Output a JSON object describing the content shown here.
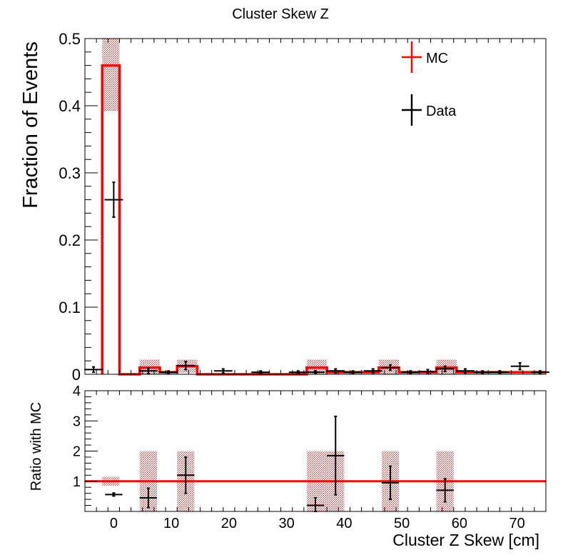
{
  "chart_data": [
    {
      "type": "histogram",
      "title": "Cluster Skew Z",
      "xlabel": "Cluster Z Skew [cm]",
      "ylabel": "Fraction of Events",
      "xlim": [
        -5,
        75
      ],
      "ylim": [
        0,
        0.5
      ],
      "y_ticks": [
        "0",
        "0.1",
        "0.2",
        "0.3",
        "0.4",
        "0.5"
      ],
      "legend": [
        {
          "label": "MC",
          "color": "#ff0000"
        },
        {
          "label": "Data",
          "color": "#000000"
        }
      ],
      "legend_position": "top-right",
      "grid": false,
      "mc_bins": [
        {
          "x0": -2,
          "x1": 1,
          "value": 0.46,
          "err": 0.068
        },
        {
          "x0": 1,
          "x1": 4.5,
          "value": 0.0,
          "err": 0
        },
        {
          "x0": 4.5,
          "x1": 8,
          "value": 0.01,
          "err": 0.012
        },
        {
          "x0": 8,
          "x1": 11,
          "value": 0.003,
          "err": 0
        },
        {
          "x0": 11,
          "x1": 14.5,
          "value": 0.012,
          "err": 0.01
        },
        {
          "x0": 14.5,
          "x1": 33.5,
          "value": 0.0,
          "err": 0
        },
        {
          "x0": 33.5,
          "x1": 37,
          "value": 0.01,
          "err": 0.012
        },
        {
          "x0": 37,
          "x1": 46,
          "value": 0.003,
          "err": 0
        },
        {
          "x0": 46,
          "x1": 49.5,
          "value": 0.01,
          "err": 0.012
        },
        {
          "x0": 49.5,
          "x1": 56,
          "value": 0.003,
          "err": 0
        },
        {
          "x0": 56,
          "x1": 59.5,
          "value": 0.01,
          "err": 0.012
        },
        {
          "x0": 59.5,
          "x1": 75,
          "value": 0.003,
          "err": 0
        }
      ],
      "data_points": [
        {
          "x": -3.5,
          "xerr": 1.6,
          "y": 0.007,
          "yerr": 0.004
        },
        {
          "x": 0,
          "xerr": 1.6,
          "y": 0.26,
          "yerr": 0.026
        },
        {
          "x": 6,
          "xerr": 1.6,
          "y": 0.005,
          "yerr": 0.004
        },
        {
          "x": 9.5,
          "xerr": 1.6,
          "y": 0.003,
          "yerr": 0.002
        },
        {
          "x": 12.5,
          "xerr": 1.6,
          "y": 0.013,
          "yerr": 0.006
        },
        {
          "x": 19,
          "xerr": 1.6,
          "y": 0.005,
          "yerr": 0.003
        },
        {
          "x": 25.5,
          "xerr": 1.6,
          "y": 0.003,
          "yerr": 0.002
        },
        {
          "x": 32,
          "xerr": 1.6,
          "y": 0.003,
          "yerr": 0.002
        },
        {
          "x": 35,
          "xerr": 1.6,
          "y": 0.003,
          "yerr": 0.002
        },
        {
          "x": 38.5,
          "xerr": 1.6,
          "y": 0.005,
          "yerr": 0.003
        },
        {
          "x": 41.5,
          "xerr": 1.6,
          "y": 0.003,
          "yerr": 0.002
        },
        {
          "x": 45,
          "xerr": 1.6,
          "y": 0.005,
          "yerr": 0.003
        },
        {
          "x": 48,
          "xerr": 1.6,
          "y": 0.01,
          "yerr": 0.004
        },
        {
          "x": 51.5,
          "xerr": 1.6,
          "y": 0.003,
          "yerr": 0.002
        },
        {
          "x": 54.5,
          "xerr": 1.6,
          "y": 0.004,
          "yerr": 0.003
        },
        {
          "x": 57.5,
          "xerr": 1.6,
          "y": 0.008,
          "yerr": 0.004
        },
        {
          "x": 61,
          "xerr": 1.6,
          "y": 0.005,
          "yerr": 0.003
        },
        {
          "x": 64,
          "xerr": 1.6,
          "y": 0.003,
          "yerr": 0.002
        },
        {
          "x": 67,
          "xerr": 1.6,
          "y": 0.003,
          "yerr": 0.002
        },
        {
          "x": 70.5,
          "xerr": 1.6,
          "y": 0.012,
          "yerr": 0.005
        },
        {
          "x": 74,
          "xerr": 1.6,
          "y": 0.003,
          "yerr": 0.002
        }
      ]
    },
    {
      "type": "scatter",
      "xlabel": "Cluster Z Skew [cm]",
      "ylabel": "Ratio with MC",
      "xlim": [
        -5,
        75
      ],
      "ylim": [
        0,
        4
      ],
      "x_ticks": [
        "0",
        "10",
        "20",
        "30",
        "40",
        "50",
        "60",
        "70"
      ],
      "y_ticks": [
        "1",
        "2",
        "3",
        "4"
      ],
      "reference_line": 1,
      "mc_error_bands": [
        {
          "x0": -2,
          "x1": 1,
          "y0": 0.85,
          "y1": 1.15
        },
        {
          "x0": 4.5,
          "x1": 7.5,
          "y0": 0,
          "y1": 2
        },
        {
          "x0": 11,
          "x1": 14,
          "y0": 0,
          "y1": 2
        },
        {
          "x0": 33.5,
          "x1": 40,
          "y0": 0,
          "y1": 2
        },
        {
          "x0": 46.5,
          "x1": 49.5,
          "y0": 0,
          "y1": 2
        },
        {
          "x0": 56,
          "x1": 59,
          "y0": 0,
          "y1": 2
        }
      ],
      "points": [
        {
          "x": 0,
          "xerr": 1.5,
          "y": 0.56,
          "yerr": 0.05
        },
        {
          "x": 6,
          "xerr": 1.5,
          "y": 0.45,
          "yerr": 0.32
        },
        {
          "x": 12.5,
          "xerr": 1.5,
          "y": 1.2,
          "yerr": 0.6
        },
        {
          "x": 35,
          "xerr": 1.5,
          "y": 0.2,
          "yerr": 0.25
        },
        {
          "x": 38.5,
          "xerr": 1.5,
          "y": 1.85,
          "yerr": 1.3
        },
        {
          "x": 48,
          "xerr": 1.5,
          "y": 0.95,
          "yerr": 0.55
        },
        {
          "x": 57.5,
          "xerr": 1.5,
          "y": 0.7,
          "yerr": 0.38
        }
      ]
    }
  ]
}
